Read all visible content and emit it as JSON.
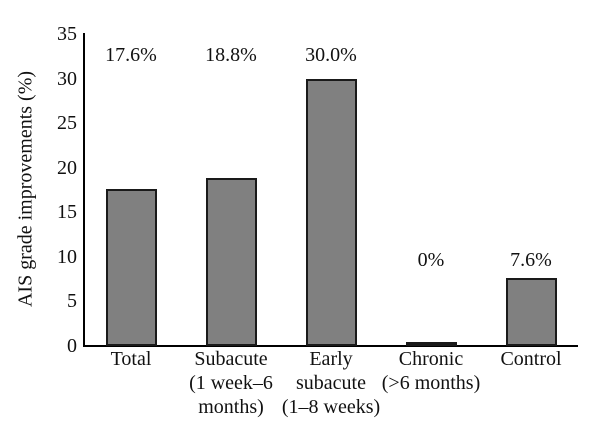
{
  "chart_data": {
    "type": "bar",
    "title": "",
    "xlabel": "",
    "ylabel": "AIS grade improvements (%)",
    "ylim": [
      0,
      35
    ],
    "yticks": [
      0,
      5,
      10,
      15,
      20,
      25,
      30,
      35
    ],
    "grid": false,
    "legend": "none",
    "categories": [
      "Total",
      "Subacute (1 week–6 months)",
      "Early subacute (1–8 weeks)",
      "Chronic (>6 months)",
      "Control"
    ],
    "category_lines": [
      [
        "Total"
      ],
      [
        "Subacute",
        "(1 week–6",
        "months)"
      ],
      [
        "Early",
        "subacute",
        "(1–8 weeks)"
      ],
      [
        "Chronic",
        "(>6 months)"
      ],
      [
        "Control"
      ]
    ],
    "values": [
      17.6,
      18.8,
      30.0,
      0,
      7.6
    ],
    "value_labels": [
      "17.6%",
      "18.8%",
      "30.0%",
      "0%",
      "7.6%"
    ],
    "value_label_rows": [
      "top",
      "top",
      "top",
      "low",
      "low"
    ],
    "bar_fill": "#808080",
    "bar_border": "#1a1a1a",
    "axis_color": "#000000",
    "background": "#ffffff"
  }
}
